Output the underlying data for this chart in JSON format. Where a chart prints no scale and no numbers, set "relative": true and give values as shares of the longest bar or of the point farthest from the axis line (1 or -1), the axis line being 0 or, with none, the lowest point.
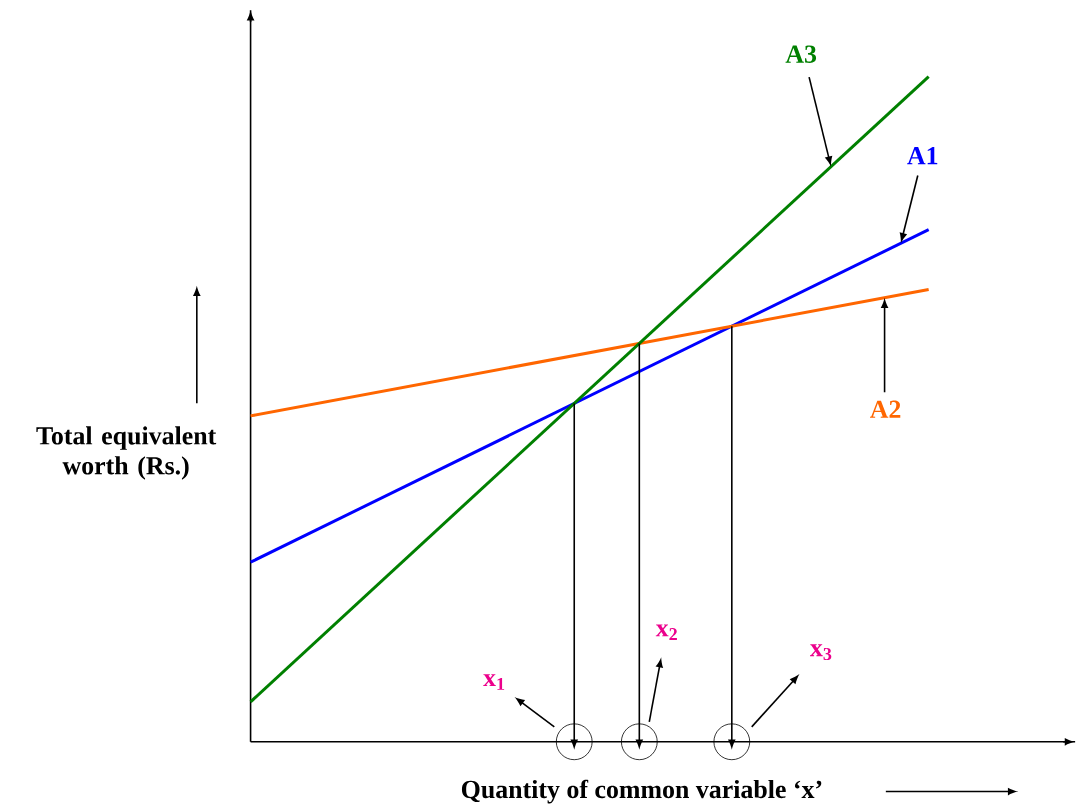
{
  "chart_data": {
    "type": "line",
    "relative": true,
    "categories": [
      null,
      null
    ],
    "xlabel": "Quantity of common variable ‘x’",
    "ylabel": "Total equivalent worth (Rs.)",
    "series": [
      {
        "name": "A1",
        "color": "#0000ff",
        "values": [
          0.27,
          0.77
        ]
      },
      {
        "name": "A2",
        "color": "#ff6600",
        "values": [
          0.49,
          0.68
        ]
      },
      {
        "name": "A3",
        "color": "#008000",
        "values": [
          0.06,
          1.0
        ]
      }
    ],
    "annotations": [
      "x$_{1}$",
      "x$_{2}$",
      "x$_{3}$"
    ]
  }
}
